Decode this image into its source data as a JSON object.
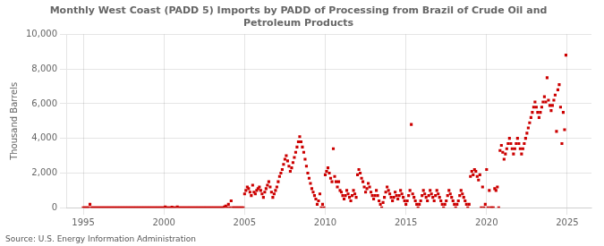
{
  "chart_data": {
    "type": "scatter",
    "title": "Monthly West Coast (PADD 5) Imports by PADD of Processing from Brazil of Crude Oil and\nPetroleum Products",
    "ylabel": "Thousand Barrels",
    "annotations": [
      "Source: U.S. Energy Information Administration"
    ],
    "color": "#cc0000",
    "marker": "square",
    "grid": true,
    "xlim": [
      1994.0,
      2026.5
    ],
    "ylim": [
      0,
      10000
    ],
    "xticks": [
      1995,
      2000,
      2005,
      2010,
      2015,
      2020,
      2025
    ],
    "yticks": [
      0,
      {
        "value": 2000,
        "label": "2,000"
      },
      {
        "value": 4000,
        "label": "4,000"
      },
      {
        "value": 6000,
        "label": "6,000"
      },
      {
        "value": 8000,
        "label": "8,000"
      },
      {
        "value": 10000,
        "label": "10,000"
      }
    ],
    "x": [
      1995.0,
      1995.083,
      1995.167,
      1995.25,
      1995.333,
      1995.417,
      1995.5,
      1995.583,
      1995.667,
      1995.75,
      1995.833,
      1995.917,
      1996.0,
      1996.083,
      1996.167,
      1996.25,
      1996.333,
      1996.417,
      1996.5,
      1996.583,
      1996.667,
      1996.75,
      1996.833,
      1996.917,
      1997.0,
      1997.083,
      1997.167,
      1997.25,
      1997.333,
      1997.417,
      1997.5,
      1997.583,
      1997.667,
      1997.75,
      1997.833,
      1997.917,
      1998.0,
      1998.083,
      1998.167,
      1998.25,
      1998.333,
      1998.417,
      1998.5,
      1998.583,
      1998.667,
      1998.75,
      1998.833,
      1998.917,
      1999.0,
      1999.083,
      1999.167,
      1999.25,
      1999.333,
      1999.417,
      1999.5,
      1999.583,
      1999.667,
      1999.75,
      1999.833,
      1999.917,
      2000.0,
      2000.083,
      2000.167,
      2000.25,
      2000.333,
      2000.417,
      2000.5,
      2000.583,
      2000.667,
      2000.75,
      2000.833,
      2000.917,
      2001.0,
      2001.083,
      2001.167,
      2001.25,
      2001.333,
      2001.417,
      2001.5,
      2001.583,
      2001.667,
      2001.75,
      2001.833,
      2001.917,
      2002.0,
      2002.083,
      2002.167,
      2002.25,
      2002.333,
      2002.417,
      2002.5,
      2002.583,
      2002.667,
      2002.75,
      2002.833,
      2002.917,
      2003.0,
      2003.083,
      2003.167,
      2003.25,
      2003.333,
      2003.417,
      2003.5,
      2003.583,
      2003.667,
      2003.75,
      2003.833,
      2003.917,
      2004.0,
      2004.083,
      2004.167,
      2004.25,
      2004.333,
      2004.417,
      2004.5,
      2004.583,
      2004.667,
      2004.75,
      2004.833,
      2004.917,
      2005.0,
      2005.083,
      2005.167,
      2005.25,
      2005.333,
      2005.417,
      2005.5,
      2005.583,
      2005.667,
      2005.75,
      2005.833,
      2005.917,
      2006.0,
      2006.083,
      2006.167,
      2006.25,
      2006.333,
      2006.417,
      2006.5,
      2006.583,
      2006.667,
      2006.75,
      2006.833,
      2006.917,
      2007.0,
      2007.083,
      2007.167,
      2007.25,
      2007.333,
      2007.417,
      2007.5,
      2007.583,
      2007.667,
      2007.75,
      2007.833,
      2007.917,
      2008.0,
      2008.083,
      2008.167,
      2008.25,
      2008.333,
      2008.417,
      2008.5,
      2008.583,
      2008.667,
      2008.75,
      2008.833,
      2008.917,
      2009.0,
      2009.083,
      2009.167,
      2009.25,
      2009.333,
      2009.417,
      2009.5,
      2009.583,
      2009.667,
      2009.75,
      2009.833,
      2009.917,
      2010.0,
      2010.083,
      2010.167,
      2010.25,
      2010.333,
      2010.417,
      2010.5,
      2010.583,
      2010.667,
      2010.75,
      2010.833,
      2010.917,
      2011.0,
      2011.083,
      2011.167,
      2011.25,
      2011.333,
      2011.417,
      2011.5,
      2011.583,
      2011.667,
      2011.75,
      2011.833,
      2011.917,
      2012.0,
      2012.083,
      2012.167,
      2012.25,
      2012.333,
      2012.417,
      2012.5,
      2012.583,
      2012.667,
      2012.75,
      2012.833,
      2012.917,
      2013.0,
      2013.083,
      2013.167,
      2013.25,
      2013.333,
      2013.417,
      2013.5,
      2013.583,
      2013.667,
      2013.75,
      2013.833,
      2013.917,
      2014.0,
      2014.083,
      2014.167,
      2014.25,
      2014.333,
      2014.417,
      2014.5,
      2014.583,
      2014.667,
      2014.75,
      2014.833,
      2014.917,
      2015.0,
      2015.083,
      2015.167,
      2015.25,
      2015.333,
      2015.417,
      2015.5,
      2015.583,
      2015.667,
      2015.75,
      2015.833,
      2015.917,
      2016.0,
      2016.083,
      2016.167,
      2016.25,
      2016.333,
      2016.417,
      2016.5,
      2016.583,
      2016.667,
      2016.75,
      2016.833,
      2016.917,
      2017.0,
      2017.083,
      2017.167,
      2017.25,
      2017.333,
      2017.417,
      2017.5,
      2017.583,
      2017.667,
      2017.75,
      2017.833,
      2017.917,
      2018.0,
      2018.083,
      2018.167,
      2018.25,
      2018.333,
      2018.417,
      2018.5,
      2018.583,
      2018.667,
      2018.75,
      2018.833,
      2018.917,
      2019.0,
      2019.083,
      2019.167,
      2019.25,
      2019.333,
      2019.417,
      2019.5,
      2019.583,
      2019.667,
      2019.75,
      2019.833,
      2019.917,
      2020.0,
      2020.083,
      2020.167,
      2020.25,
      2020.333,
      2020.417,
      2020.5,
      2020.583,
      2020.667,
      2020.75,
      2020.833,
      2020.917,
      2021.0,
      2021.083,
      2021.167,
      2021.25,
      2021.333,
      2021.417,
      2021.5,
      2021.583,
      2021.667,
      2021.75,
      2021.833,
      2021.917,
      2022.0,
      2022.083,
      2022.167,
      2022.25,
      2022.333,
      2022.417,
      2022.5,
      2022.583,
      2022.667,
      2022.75,
      2022.833,
      2022.917,
      2023.0,
      2023.083,
      2023.167,
      2023.25,
      2023.333,
      2023.417,
      2023.5,
      2023.583,
      2023.667,
      2023.75,
      2023.833,
      2023.917,
      2024.0,
      2024.083,
      2024.167,
      2024.25,
      2024.333,
      2024.417,
      2024.5,
      2024.583,
      2024.667,
      2024.75,
      2024.833,
      2024.917
    ],
    "values": [
      0,
      0,
      0,
      0,
      0,
      200,
      0,
      0,
      0,
      0,
      0,
      0,
      0,
      0,
      0,
      0,
      0,
      0,
      0,
      0,
      0,
      0,
      0,
      0,
      0,
      0,
      0,
      0,
      0,
      0,
      0,
      0,
      0,
      0,
      0,
      0,
      0,
      0,
      0,
      0,
      0,
      0,
      0,
      0,
      0,
      0,
      0,
      0,
      0,
      0,
      0,
      0,
      0,
      0,
      0,
      0,
      0,
      0,
      0,
      0,
      0,
      50,
      0,
      0,
      0,
      0,
      30,
      0,
      0,
      0,
      50,
      0,
      0,
      0,
      0,
      0,
      0,
      0,
      0,
      0,
      0,
      0,
      0,
      0,
      0,
      0,
      0,
      0,
      0,
      0,
      0,
      0,
      0,
      0,
      0,
      0,
      0,
      0,
      0,
      0,
      0,
      0,
      0,
      0,
      0,
      50,
      100,
      0,
      200,
      0,
      400,
      0,
      0,
      0,
      0,
      0,
      0,
      0,
      0,
      0,
      800,
      1000,
      1200,
      1100,
      900,
      700,
      1300,
      900,
      800,
      1000,
      1100,
      1200,
      1000,
      800,
      600,
      900,
      1100,
      1300,
      1500,
      1200,
      900,
      600,
      800,
      1000,
      1200,
      1500,
      1800,
      2000,
      2200,
      2500,
      2800,
      3000,
      2700,
      2400,
      2100,
      2300,
      2600,
      2900,
      3200,
      3500,
      3800,
      4100,
      3800,
      3500,
      3200,
      2800,
      2400,
      2000,
      1700,
      1400,
      1100,
      900,
      700,
      500,
      200,
      400,
      800,
      0,
      200,
      0,
      1900,
      2100,
      2300,
      2000,
      1700,
      1500,
      3400,
      1800,
      1500,
      1200,
      1500,
      1000,
      900,
      700,
      500,
      700,
      1000,
      800,
      600,
      400,
      700,
      1000,
      800,
      600,
      1900,
      2200,
      2000,
      1700,
      1500,
      1200,
      900,
      1100,
      1400,
      1200,
      900,
      700,
      500,
      700,
      1000,
      700,
      400,
      200,
      0,
      300,
      600,
      900,
      1200,
      1000,
      800,
      600,
      400,
      600,
      900,
      700,
      500,
      700,
      1000,
      800,
      600,
      400,
      200,
      400,
      700,
      1000,
      4800,
      800,
      600,
      400,
      200,
      0,
      200,
      400,
      700,
      1000,
      800,
      600,
      400,
      700,
      1000,
      800,
      600,
      400,
      700,
      1000,
      800,
      600,
      400,
      200,
      0,
      200,
      400,
      700,
      1000,
      800,
      600,
      400,
      200,
      0,
      200,
      400,
      700,
      1000,
      800,
      600,
      400,
      200,
      0,
      200,
      1800,
      2100,
      1900,
      2200,
      2100,
      1800,
      1600,
      1900,
      0,
      1200,
      0,
      200,
      2200,
      0,
      1000,
      0,
      0,
      0,
      1100,
      1000,
      1200,
      0,
      3300,
      3600,
      3200,
      2800,
      3100,
      3400,
      3700,
      4000,
      3700,
      3400,
      3100,
      3400,
      3700,
      4000,
      3700,
      3400,
      3100,
      3400,
      3700,
      4000,
      4300,
      4600,
      4900,
      5200,
      5500,
      5800,
      6100,
      5800,
      5500,
      5200,
      5500,
      5800,
      6100,
      6400,
      6100,
      7500,
      6200,
      5900,
      5600,
      5900,
      6200,
      6500,
      4400,
      6800,
      7100,
      5800,
      3700,
      5500,
      4500,
      8800
    ]
  }
}
